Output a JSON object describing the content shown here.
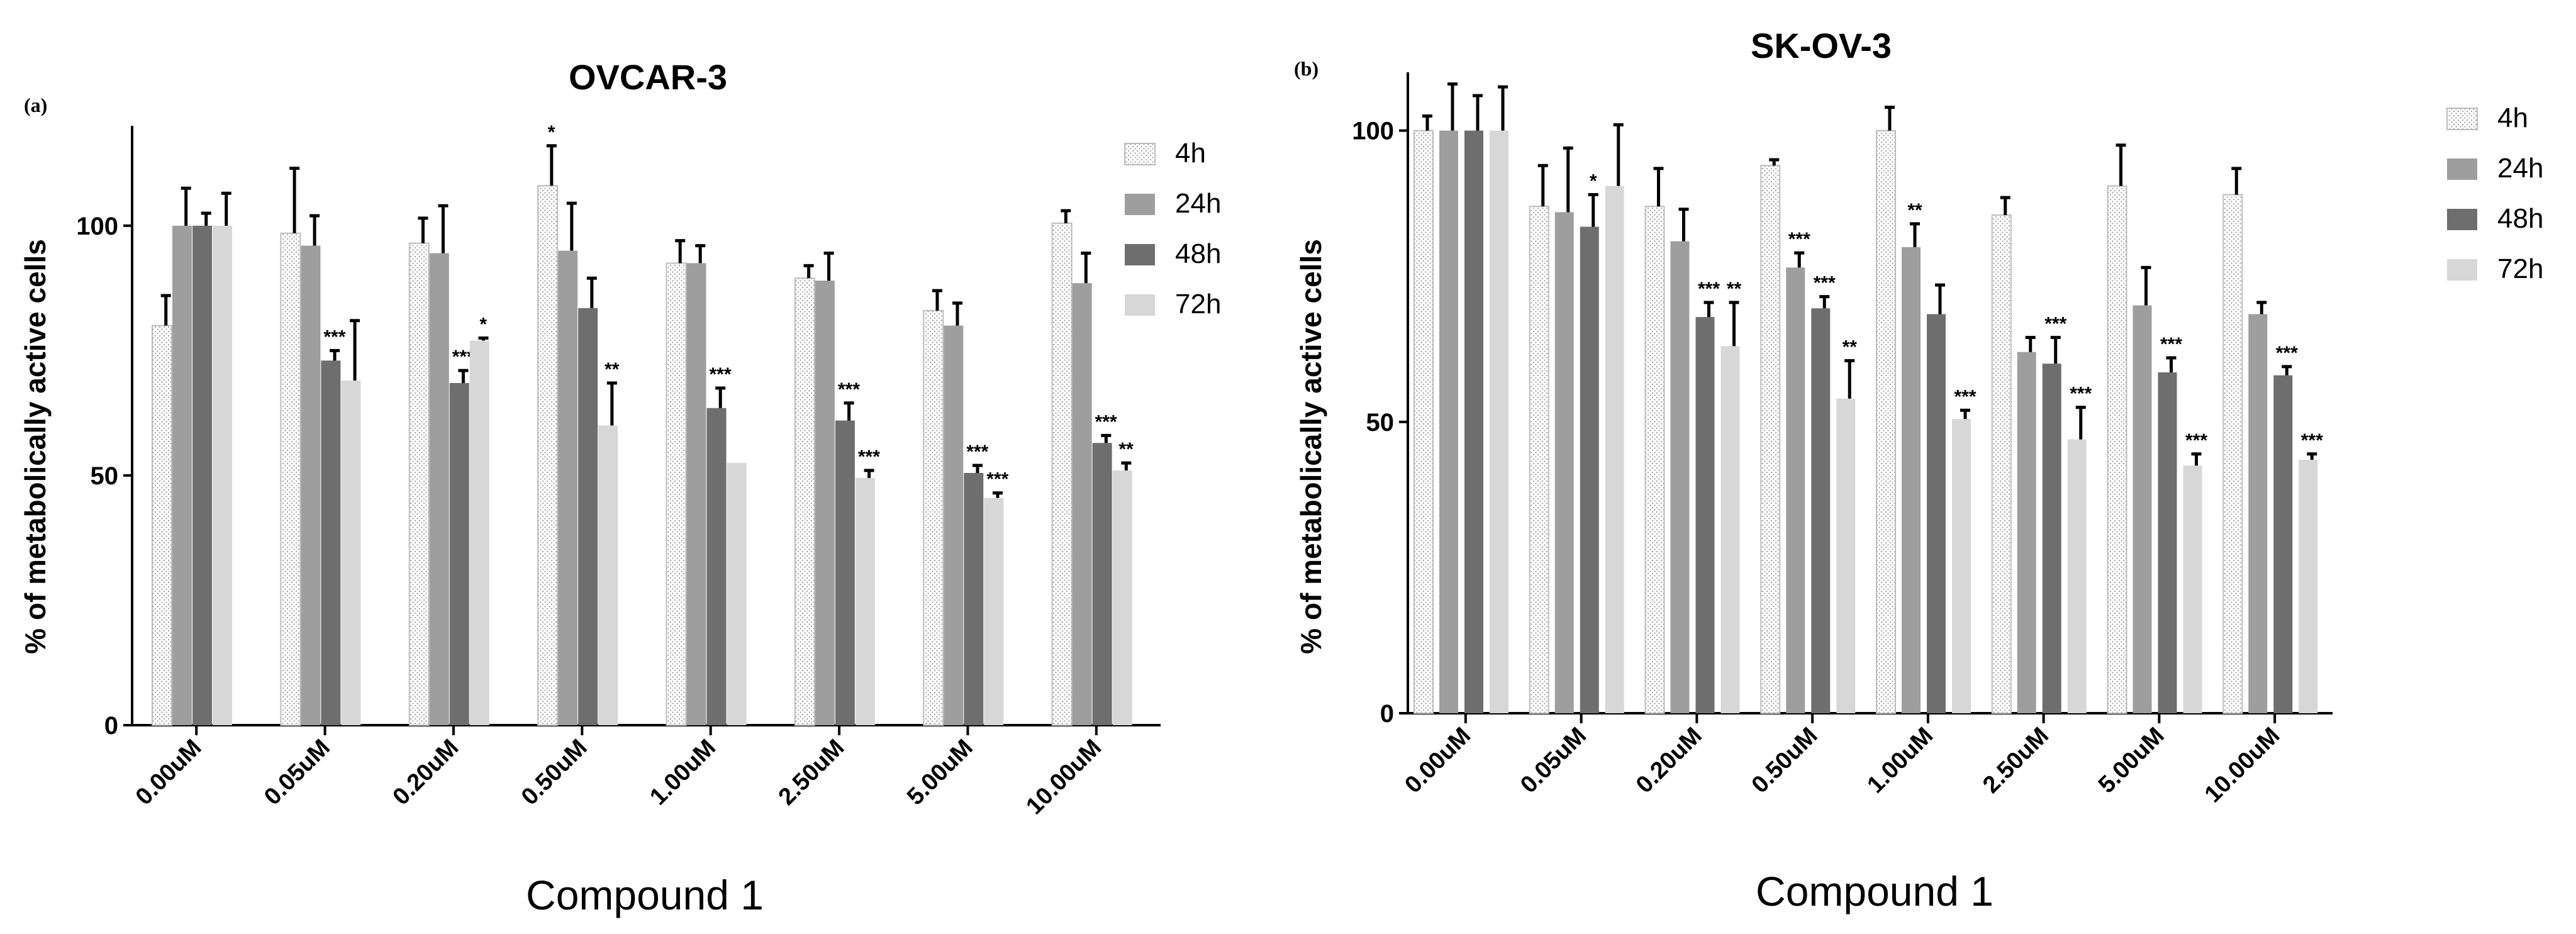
{
  "chart_data": [
    {
      "panel_label": "(a)",
      "type": "bar",
      "title": "OVCAR-3",
      "xlabel": "Compound 1",
      "ylabel": "% of metabolically active cells",
      "ylim": [
        0,
        120
      ],
      "yticks": [
        "0",
        "50",
        "100"
      ],
      "grid": false,
      "legend_position": "top-right",
      "categories": [
        "0.00uM",
        "0.05uM",
        "0.20uM",
        "0.50uM",
        "1.00uM",
        "2.50uM",
        "5.00uM",
        "10.00uM"
      ],
      "series": [
        {
          "name": "4h",
          "values": [
            80,
            98.5,
            96.5,
            108,
            92.5,
            89.5,
            83,
            100.5
          ],
          "errors": [
            6,
            13,
            5,
            8,
            4.5,
            2.5,
            4,
            2.5
          ],
          "significance": [
            "",
            "",
            "",
            "*",
            "",
            "",
            "",
            ""
          ]
        },
        {
          "name": "24h",
          "values": [
            100,
            96,
            94.5,
            95,
            92.5,
            89,
            80,
            88.5
          ],
          "errors": [
            7.5,
            6,
            9.5,
            9.5,
            3.5,
            5.5,
            4.5,
            6
          ],
          "significance": [
            "",
            "",
            "",
            "",
            "",
            "",
            "",
            ""
          ]
        },
        {
          "name": "48h",
          "values": [
            100,
            73,
            68.5,
            83.5,
            63.5,
            61,
            50.5,
            56.5
          ],
          "errors": [
            2.5,
            2,
            2.5,
            6,
            4,
            3.5,
            1.5,
            1.5
          ],
          "significance": [
            "",
            "***",
            "***",
            "",
            "***",
            "***",
            "***",
            "***"
          ]
        },
        {
          "name": "72h",
          "values": [
            100,
            69,
            77,
            60,
            52.5,
            49.5,
            45.5,
            51
          ],
          "errors": [
            6.5,
            12,
            0.5,
            8.5,
            0,
            1.5,
            1,
            1.5
          ],
          "significance": [
            "",
            "",
            "*",
            "**",
            "",
            "***",
            "***",
            "**"
          ]
        }
      ]
    },
    {
      "panel_label": "(b)",
      "type": "bar",
      "title": "SK-OV-3",
      "xlabel": "Compound 1",
      "ylabel": "% of metabolically active cells",
      "ylim": [
        0,
        110
      ],
      "yticks": [
        "0",
        "50",
        "100"
      ],
      "grid": false,
      "legend_position": "top-right",
      "categories": [
        "0.00uM",
        "0.05uM",
        "0.20uM",
        "0.50uM",
        "1.00uM",
        "2.50uM",
        "5.00uM",
        "10.00uM"
      ],
      "series": [
        {
          "name": "4h",
          "values": [
            100,
            87,
            87,
            94,
            100,
            85.5,
            90.5,
            89
          ],
          "errors": [
            2.5,
            7,
            6.5,
            1,
            4,
            3,
            7,
            4.5
          ],
          "significance": [
            "",
            "",
            "",
            "",
            "",
            "",
            "",
            ""
          ]
        },
        {
          "name": "24h",
          "values": [
            100,
            86,
            81,
            76.5,
            80,
            62,
            70,
            68.5
          ],
          "errors": [
            8,
            11,
            5.5,
            2.5,
            4,
            2.5,
            6.5,
            2
          ],
          "significance": [
            "",
            "",
            "",
            "***",
            "**",
            "",
            "",
            ""
          ]
        },
        {
          "name": "48h",
          "values": [
            100,
            83.5,
            68,
            69.5,
            68.5,
            60,
            58.5,
            58
          ],
          "errors": [
            6,
            5.5,
            2.5,
            2,
            5,
            4.5,
            2.5,
            1.5
          ],
          "significance": [
            "",
            "*",
            "***",
            "***",
            "",
            "***",
            "***",
            "***"
          ]
        },
        {
          "name": "72h",
          "values": [
            100,
            90.5,
            63,
            54,
            50.5,
            47,
            42.5,
            43.5
          ],
          "errors": [
            7.5,
            10.5,
            7.5,
            6.5,
            1.5,
            5.5,
            2,
            1
          ],
          "significance": [
            "",
            "",
            "**",
            "**",
            "***",
            "***",
            "***",
            "***"
          ]
        }
      ]
    }
  ]
}
